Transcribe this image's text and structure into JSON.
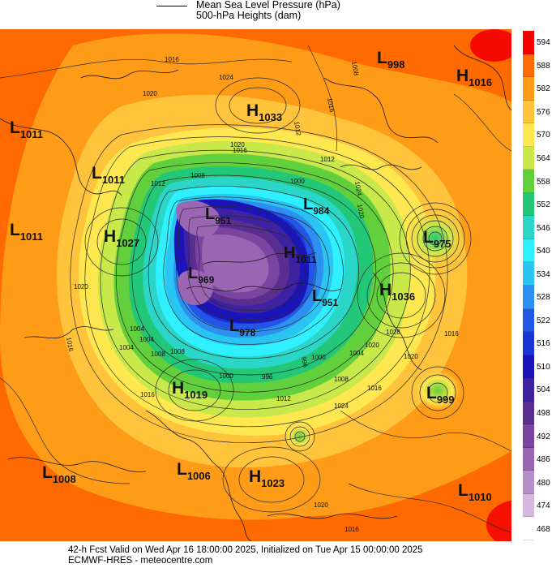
{
  "legend": {
    "line1": "Mean Sea Level Pressure (hPa)",
    "line2": "500-hPa Heights (dam)"
  },
  "colorbar": {
    "levels": [
      "594",
      "588",
      "582",
      "576",
      "570",
      "564",
      "558",
      "552",
      "546",
      "540",
      "534",
      "528",
      "522",
      "516",
      "510",
      "504",
      "498",
      "492",
      "486",
      "480",
      "474",
      "468"
    ],
    "colors": [
      "#f40000",
      "#ff6a00",
      "#ff9c17",
      "#ffc43b",
      "#ffe84f",
      "#c9e84a",
      "#62cf3d",
      "#22c877",
      "#2ad6c8",
      "#2ff0ff",
      "#29c4f2",
      "#2d8ff0",
      "#2456e6",
      "#1735d5",
      "#1a14b9",
      "#3e22a2",
      "#5a2e8e",
      "#7b44a0",
      "#9a66b4",
      "#b68ec8",
      "#d4b8e0",
      "#ffffff"
    ]
  },
  "pressure_centers": [
    {
      "type": "L",
      "value": "998"
    },
    {
      "type": "H",
      "value": "1016"
    },
    {
      "type": "H",
      "value": "1033"
    },
    {
      "type": "L",
      "value": "1011"
    },
    {
      "type": "L",
      "value": "1011"
    },
    {
      "type": "L",
      "value": "1011"
    },
    {
      "type": "H",
      "value": "1027"
    },
    {
      "type": "L",
      "value": "951"
    },
    {
      "type": "L",
      "value": "984"
    },
    {
      "type": "L",
      "value": "975"
    },
    {
      "type": "H",
      "value": "1011"
    },
    {
      "type": "L",
      "value": "969"
    },
    {
      "type": "L",
      "value": "951"
    },
    {
      "type": "H",
      "value": "1036"
    },
    {
      "type": "L",
      "value": "978"
    },
    {
      "type": "H",
      "value": "1019"
    },
    {
      "type": "L",
      "value": "999"
    },
    {
      "type": "L",
      "value": "1008"
    },
    {
      "type": "L",
      "value": "1006"
    },
    {
      "type": "H",
      "value": "1023"
    },
    {
      "type": "L",
      "value": "1010"
    }
  ],
  "isobar_labels": [
    "1016",
    "1020",
    "1024",
    "1008",
    "1016",
    "1012",
    "1008",
    "1020",
    "1012",
    "1016",
    "1024",
    "1020",
    "1012",
    "1000",
    "1004",
    "996",
    "1000",
    "1004",
    "1008",
    "1012",
    "1016",
    "1020",
    "1016",
    "1020",
    "1008",
    "1004",
    "1016",
    "1024",
    "1016",
    "1020",
    "996",
    "1008",
    "1004",
    "1000",
    "1020",
    "1028",
    "1016"
  ],
  "footer": {
    "line1": "42-h Fcst Valid on Wed Apr 16 18:00:00 2025, Initialized on Tue Apr 15 00:00:00 2025",
    "line2": "ECMWF-HRES  - meteocentre.com"
  }
}
